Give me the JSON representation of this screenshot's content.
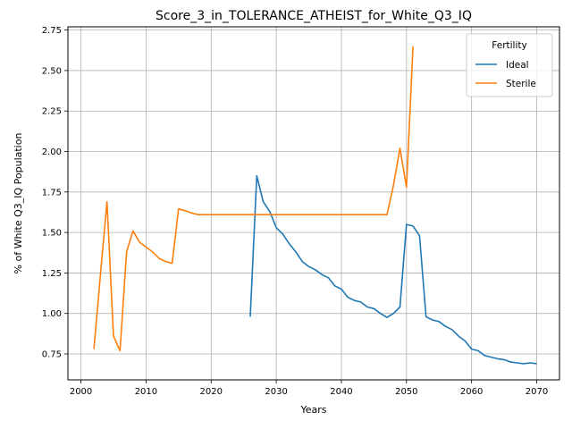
{
  "chart_data": {
    "type": "line",
    "title": "Score_3_in_TOLERANCE_ATHEIST_for_White_Q3_IQ",
    "xlabel": "Years",
    "ylabel": "% of White Q3_IQ Population",
    "xlim": [
      1998,
      2073.5
    ],
    "ylim": [
      0.59,
      2.77
    ],
    "xticks": [
      2000,
      2010,
      2020,
      2030,
      2040,
      2050,
      2060,
      2070
    ],
    "yticks": [
      0.75,
      1.0,
      1.25,
      1.5,
      1.75,
      2.0,
      2.25,
      2.5,
      2.75
    ],
    "ytick_labels": [
      "0.75",
      "1.00",
      "1.25",
      "1.50",
      "1.75",
      "2.00",
      "2.25",
      "2.50",
      "2.75"
    ],
    "grid": true,
    "legend": {
      "title": "Fertility",
      "placement": "top-right"
    },
    "series": [
      {
        "name": "Ideal",
        "color": "#1f77b4",
        "x": [
          2026,
          2027,
          2028,
          2029,
          2030,
          2031,
          2032,
          2033,
          2034,
          2035,
          2036,
          2037,
          2038,
          2039,
          2040,
          2041,
          2042,
          2043,
          2044,
          2045,
          2046,
          2047,
          2048,
          2049,
          2050,
          2051,
          2052,
          2053,
          2054,
          2055,
          2056,
          2057,
          2058,
          2059,
          2060,
          2061,
          2062,
          2063,
          2064,
          2065,
          2066,
          2067,
          2068,
          2069,
          2070
        ],
        "y": [
          0.98,
          1.85,
          1.69,
          1.63,
          1.53,
          1.49,
          1.43,
          1.38,
          1.32,
          1.29,
          1.27,
          1.24,
          1.22,
          1.17,
          1.15,
          1.1,
          1.08,
          1.07,
          1.04,
          1.03,
          1.0,
          0.975,
          1.0,
          1.04,
          1.55,
          1.54,
          1.48,
          0.98,
          0.96,
          0.95,
          0.92,
          0.9,
          0.86,
          0.83,
          0.78,
          0.77,
          0.74,
          0.73,
          0.72,
          0.715,
          0.7,
          0.695,
          0.69,
          0.695,
          0.69
        ]
      },
      {
        "name": "Sterile",
        "color": "#ff7f0e",
        "x": [
          2002,
          2003,
          2004,
          2005,
          2006,
          2007,
          2008,
          2009,
          2010,
          2011,
          2012,
          2013,
          2014,
          2015,
          2016,
          2017,
          2018,
          2019,
          2020,
          2025,
          2030,
          2035,
          2040,
          2045,
          2047,
          2048,
          2049,
          2050,
          2051
        ],
        "y": [
          0.78,
          1.24,
          1.69,
          0.86,
          0.77,
          1.38,
          1.51,
          1.44,
          1.41,
          1.38,
          1.34,
          1.32,
          1.31,
          1.645,
          1.635,
          1.62,
          1.61,
          1.61,
          1.61,
          1.61,
          1.61,
          1.61,
          1.61,
          1.61,
          1.61,
          1.79,
          2.02,
          1.78,
          2.65
        ]
      }
    ]
  }
}
